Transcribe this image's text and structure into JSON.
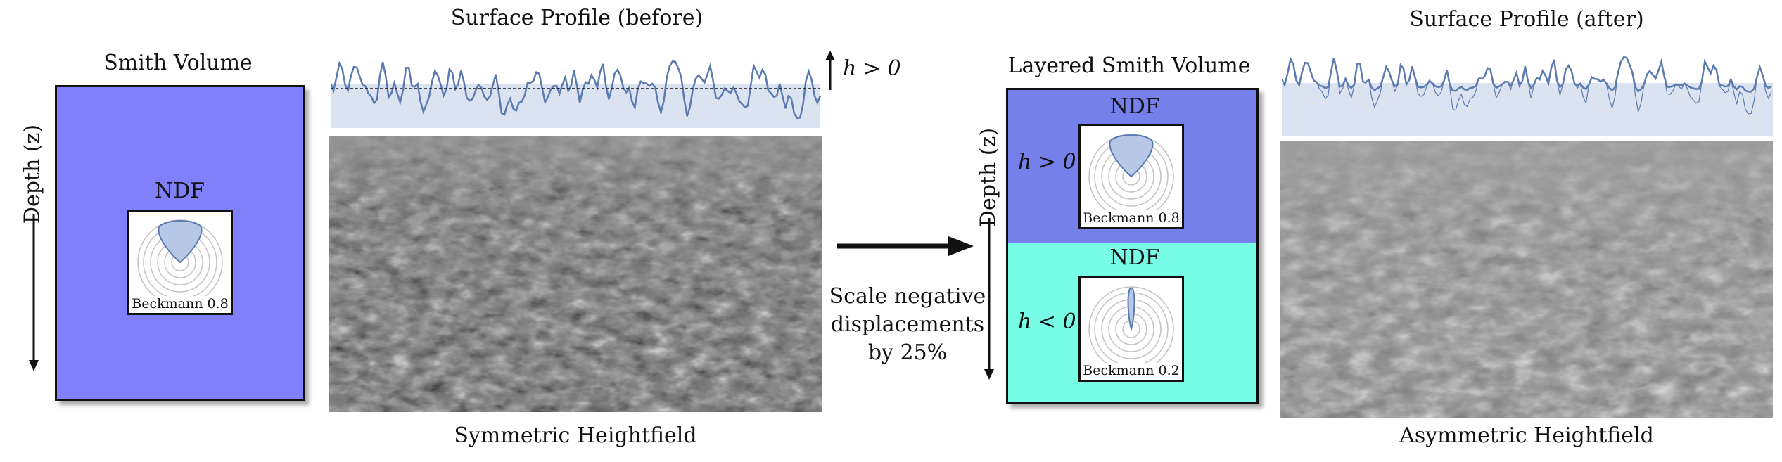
{
  "left": {
    "volume_title": "Smith Volume",
    "axis_label": "Depth (z)",
    "ndf": {
      "title": "NDF",
      "caption": "Beckmann 0.8"
    },
    "volume_color": "#8080fa"
  },
  "before": {
    "profile_title": "Surface Profile (before)",
    "h_label": "h > 0",
    "heightfield_caption": "Symmetric Heightfield"
  },
  "transform": {
    "lines": [
      "Scale negative",
      "displacements",
      "by 25%"
    ]
  },
  "right": {
    "volume_title": "Layered Smith Volume",
    "axis_label": "Depth (z)",
    "upper": {
      "color": "#7680eb",
      "h_label": "h > 0",
      "ndf_title": "NDF",
      "ndf_caption": "Beckmann 0.8"
    },
    "lower": {
      "color": "#77fde6",
      "h_label": "h < 0",
      "ndf_title": "NDF",
      "ndf_caption": "Beckmann 0.2"
    }
  },
  "after": {
    "profile_title": "Surface Profile (after)",
    "heightfield_caption": "Asymmetric Heightfield"
  },
  "colors": {
    "profile_line": "#5b7bb0",
    "profile_fill": "#dbe3f1",
    "lobe_fill": "#b7c8e6"
  }
}
